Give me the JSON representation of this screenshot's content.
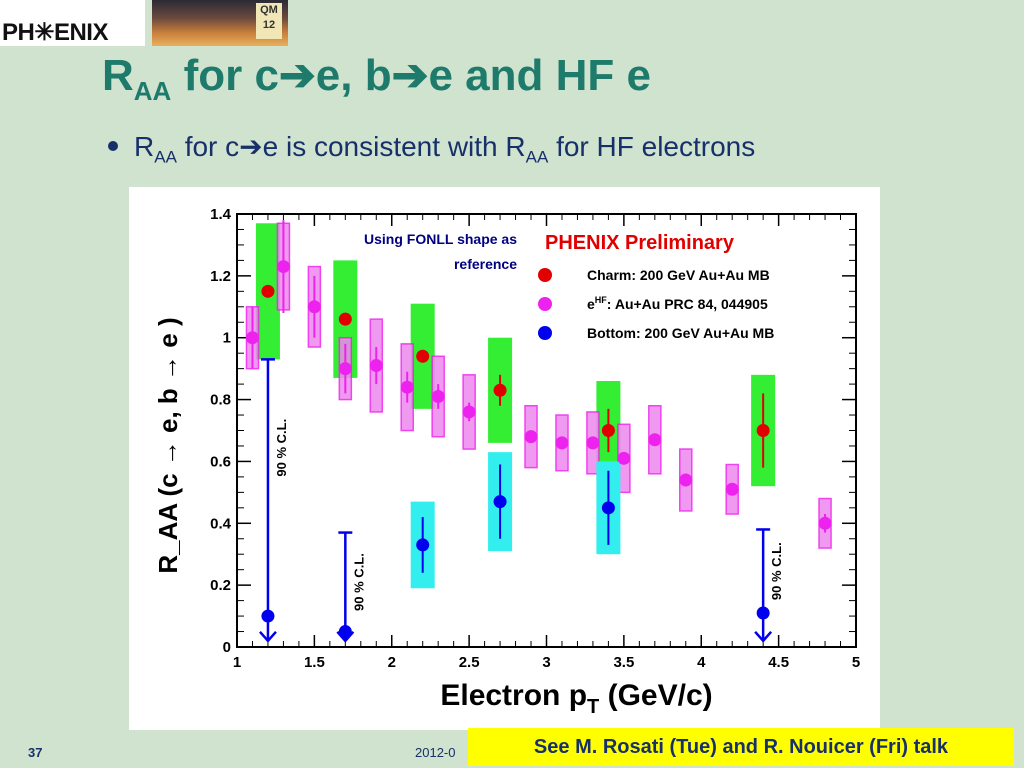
{
  "header": {
    "logo_text": "PH✳ENIX",
    "conf_badge": "QM 12"
  },
  "slide": {
    "title_main": "R",
    "title_sub": "AA",
    "title_rest": " for c➔e, b➔e and HF e",
    "bullet_r": "R",
    "bullet_sub1": "AA",
    "bullet_mid": " for c➔e is consistent with R",
    "bullet_sub2": "AA",
    "bullet_end": " for HF electrons"
  },
  "footer": {
    "page_number": "37",
    "date": "2012-0",
    "note": "See M. Rosati (Tue) and R. Nouicer (Fri) talk"
  },
  "chart_data": {
    "type": "scatter",
    "preliminary_label": "PHENIX Preliminary",
    "annotation": "Using FONLL shape as reference",
    "xlabel": "Electron p",
    "xlabel_sub": "T",
    "xlabel_units": " (GeV/c)",
    "ylabel": "R_AA (c → e, b → e )",
    "xlim": [
      1,
      5
    ],
    "ylim": [
      0,
      1.4
    ],
    "xticks": [
      "1",
      "1.5",
      "2",
      "2.5",
      "3",
      "3.5",
      "4",
      "4.5",
      "5"
    ],
    "yticks": [
      "0",
      "0.2",
      "0.4",
      "0.6",
      "0.8",
      "1",
      "1.2",
      "1.4"
    ],
    "cl_label": "90 % C.L.",
    "series": [
      {
        "name": "Charm: 200 GeV Au+Au MB",
        "color": "#e00000",
        "sys_color": "#33ee33",
        "points": [
          {
            "x": 1.2,
            "y": 1.15,
            "stat": 0.0,
            "sys": 0.22
          },
          {
            "x": 1.7,
            "y": 1.06,
            "stat": 0.0,
            "sys": 0.19
          },
          {
            "x": 2.2,
            "y": 0.94,
            "stat": 0.0,
            "sys": 0.17
          },
          {
            "x": 2.7,
            "y": 0.83,
            "stat": 0.05,
            "sys": 0.17
          },
          {
            "x": 3.4,
            "y": 0.7,
            "stat": 0.07,
            "sys": 0.16
          },
          {
            "x": 4.4,
            "y": 0.7,
            "stat": 0.12,
            "sys": 0.18
          }
        ]
      },
      {
        "name": "e: Au+Au PRC 84, 044905",
        "name_sup": "HF",
        "color": "#ee22ee",
        "sys_color": "#ee88ee",
        "points": [
          {
            "x": 1.1,
            "y": 1.0,
            "stat": 0.1,
            "sys": 0.1
          },
          {
            "x": 1.3,
            "y": 1.23,
            "stat": 0.15,
            "sys": 0.14
          },
          {
            "x": 1.5,
            "y": 1.1,
            "stat": 0.1,
            "sys": 0.13
          },
          {
            "x": 1.7,
            "y": 0.9,
            "stat": 0.08,
            "sys": 0.1
          },
          {
            "x": 1.9,
            "y": 0.91,
            "stat": 0.06,
            "sys": 0.15
          },
          {
            "x": 2.1,
            "y": 0.84,
            "stat": 0.05,
            "sys": 0.14
          },
          {
            "x": 2.3,
            "y": 0.81,
            "stat": 0.04,
            "sys": 0.13
          },
          {
            "x": 2.5,
            "y": 0.76,
            "stat": 0.03,
            "sys": 0.12
          },
          {
            "x": 2.9,
            "y": 0.68,
            "stat": 0.02,
            "sys": 0.1
          },
          {
            "x": 3.1,
            "y": 0.66,
            "stat": 0.02,
            "sys": 0.09
          },
          {
            "x": 3.3,
            "y": 0.66,
            "stat": 0.02,
            "sys": 0.1
          },
          {
            "x": 3.5,
            "y": 0.61,
            "stat": 0.02,
            "sys": 0.11
          },
          {
            "x": 3.7,
            "y": 0.67,
            "stat": 0.02,
            "sys": 0.11
          },
          {
            "x": 3.9,
            "y": 0.54,
            "stat": 0.02,
            "sys": 0.1
          },
          {
            "x": 4.2,
            "y": 0.51,
            "stat": 0.02,
            "sys": 0.08
          },
          {
            "x": 4.8,
            "y": 0.4,
            "stat": 0.03,
            "sys": 0.08
          }
        ]
      },
      {
        "name": "Bottom: 200 GeV Au+Au MB",
        "color": "#0000ee",
        "sys_color": "#33eeee",
        "points": [
          {
            "x": 1.2,
            "y": 0.1,
            "stat": 0.0,
            "sys": 0.0,
            "upper_limit": 0.93
          },
          {
            "x": 1.7,
            "y": 0.05,
            "stat": 0.0,
            "sys": 0.0,
            "upper_limit": 0.37
          },
          {
            "x": 2.2,
            "y": 0.33,
            "stat": 0.09,
            "sys": 0.14
          },
          {
            "x": 2.7,
            "y": 0.47,
            "stat": 0.12,
            "sys": 0.16
          },
          {
            "x": 3.4,
            "y": 0.45,
            "stat": 0.12,
            "sys": 0.15
          },
          {
            "x": 4.4,
            "y": 0.11,
            "stat": 0.0,
            "sys": 0.0,
            "upper_limit": 0.38
          }
        ]
      }
    ]
  }
}
